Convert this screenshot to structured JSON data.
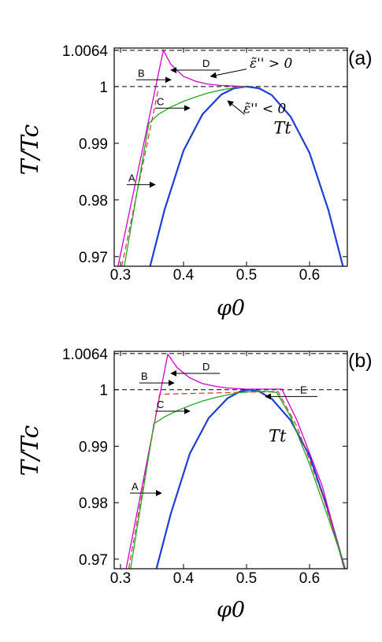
{
  "chart_data": [
    {
      "type": "line",
      "panel_label": "(a)",
      "xlabel": "φ0",
      "ylabel": "T/Tc",
      "xlim": [
        0.29,
        0.66
      ],
      "ylim": [
        0.9683,
        1.0068
      ],
      "xticks": [
        0.3,
        0.4,
        0.5,
        0.6
      ],
      "xtick_labels": [
        "0.3",
        "0.4",
        "0.5",
        "0.6"
      ],
      "yticks": [
        0.97,
        0.98,
        0.99,
        1.0,
        1.0064
      ],
      "ytick_labels": [
        "0.97",
        "0.98",
        "0.99",
        "1",
        "1.0064"
      ],
      "reference_lines": [
        {
          "y": 1.0064,
          "style": "dashed"
        },
        {
          "y": 1.0,
          "style": "dashed"
        }
      ],
      "curve_label": "Tt",
      "annotations": [
        "ε̃'' > 0",
        "ε̃'' < 0"
      ],
      "arrow_labels": [
        {
          "text": "A",
          "x": 0.31,
          "y": 0.9827,
          "to_x": 0.355,
          "direction": "right"
        },
        {
          "text": "B",
          "x": 0.325,
          "y": 1.0012,
          "to_x": 0.38,
          "direction": "right"
        },
        {
          "text": "C",
          "x": 0.355,
          "y": 0.9962,
          "to_x": 0.41,
          "direction": "right"
        },
        {
          "text": "D",
          "x": 0.43,
          "y": 1.0029,
          "to_x": 0.38,
          "direction": "left"
        }
      ],
      "series": [
        {
          "color": "#1f3ed6",
          "style": "solid",
          "x": [
            0.347,
            0.37,
            0.4,
            0.43,
            0.46,
            0.48,
            0.5,
            0.52,
            0.54,
            0.57,
            0.6,
            0.63,
            0.653
          ],
          "y": [
            0.9683,
            0.9783,
            0.9887,
            0.9951,
            0.9986,
            0.9997,
            1.0,
            0.9997,
            0.9985,
            0.9947,
            0.9883,
            0.9782,
            0.9683
          ]
        },
        {
          "color": "#cc00cc",
          "style": "solid",
          "x": [
            0.296,
            0.368,
            0.38,
            0.4,
            0.42,
            0.44,
            0.46,
            0.48,
            0.5
          ],
          "y": [
            0.9683,
            1.0064,
            1.0039,
            1.0018,
            1.0009,
            1.0004,
            1.0002,
            1.0001,
            1.0
          ]
        },
        {
          "color": "#d04040",
          "style": "dashed",
          "x": [
            0.302,
            0.36
          ],
          "y": [
            0.9683,
            0.9995
          ]
        },
        {
          "color": "#22aa22",
          "style": "solid",
          "x": [
            0.306,
            0.345,
            0.36,
            0.38,
            0.4,
            0.42,
            0.44,
            0.46,
            0.48,
            0.5
          ],
          "y": [
            0.9683,
            0.9935,
            0.9951,
            0.9964,
            0.9974,
            0.9982,
            0.9989,
            0.9994,
            0.9998,
            1.0
          ]
        }
      ]
    },
    {
      "type": "line",
      "panel_label": "(b)",
      "xlabel": "φ0",
      "ylabel": "T/Tc",
      "xlim": [
        0.29,
        0.66
      ],
      "ylim": [
        0.9683,
        1.0068
      ],
      "xticks": [
        0.3,
        0.4,
        0.5,
        0.6
      ],
      "xtick_labels": [
        "0.3",
        "0.4",
        "0.5",
        "0.6"
      ],
      "yticks": [
        0.97,
        0.98,
        0.99,
        1.0,
        1.0064
      ],
      "ytick_labels": [
        "0.97",
        "0.98",
        "0.99",
        "1",
        "1.0064"
      ],
      "reference_lines": [
        {
          "y": 1.0064,
          "style": "dashed"
        },
        {
          "y": 1.0,
          "style": "dashed"
        }
      ],
      "curve_label": "Tt",
      "annotations": [],
      "arrow_labels": [
        {
          "text": "A",
          "x": 0.315,
          "y": 0.9817,
          "to_x": 0.365,
          "direction": "right"
        },
        {
          "text": "B",
          "x": 0.33,
          "y": 1.0012,
          "to_x": 0.385,
          "direction": "right"
        },
        {
          "text": "C",
          "x": 0.355,
          "y": 0.9962,
          "to_x": 0.41,
          "direction": "right"
        },
        {
          "text": "D",
          "x": 0.43,
          "y": 1.0029,
          "to_x": 0.38,
          "direction": "left"
        },
        {
          "text": "E",
          "x": 0.585,
          "y": 0.9988,
          "to_x": 0.53,
          "direction": "left"
        }
      ],
      "series": [
        {
          "color": "#1f3ed6",
          "style": "solid",
          "x": [
            0.357,
            0.38,
            0.41,
            0.44,
            0.47,
            0.49,
            0.505,
            0.52,
            0.54,
            0.57,
            0.6,
            0.63,
            0.656
          ],
          "y": [
            0.9683,
            0.9781,
            0.9887,
            0.995,
            0.9985,
            0.9997,
            1.0,
            0.9997,
            0.9984,
            0.9946,
            0.9883,
            0.9785,
            0.9683
          ]
        },
        {
          "color": "#cc00cc",
          "style": "solid",
          "x": [
            0.309,
            0.375,
            0.39,
            0.41,
            0.43,
            0.45,
            0.47,
            0.5,
            0.53,
            0.556,
            0.58,
            0.62,
            0.655
          ],
          "y": [
            0.9683,
            1.0063,
            1.0039,
            1.0021,
            1.0011,
            1.0006,
            1.0003,
            1.0001,
            1.0001,
            1.0001,
            0.9946,
            0.983,
            0.9683
          ]
        },
        {
          "color": "#d04040",
          "style": "dashed",
          "x": [
            0.313,
            0.362,
            0.55,
            0.58,
            0.62,
            0.657
          ],
          "y": [
            0.9683,
            0.9992,
            0.9997,
            0.9935,
            0.9815,
            0.9683
          ]
        },
        {
          "color": "#22aa22",
          "style": "solid",
          "x": [
            0.316,
            0.353,
            0.37,
            0.39,
            0.41,
            0.43,
            0.45,
            0.47,
            0.49,
            0.51,
            0.53,
            0.548,
            0.57,
            0.6,
            0.63,
            0.657
          ],
          "y": [
            0.9683,
            0.994,
            0.9952,
            0.9963,
            0.9972,
            0.998,
            0.9986,
            0.9991,
            0.9995,
            0.9997,
            0.9997,
            0.9995,
            0.9952,
            0.9868,
            0.9772,
            0.9683
          ]
        }
      ]
    }
  ]
}
